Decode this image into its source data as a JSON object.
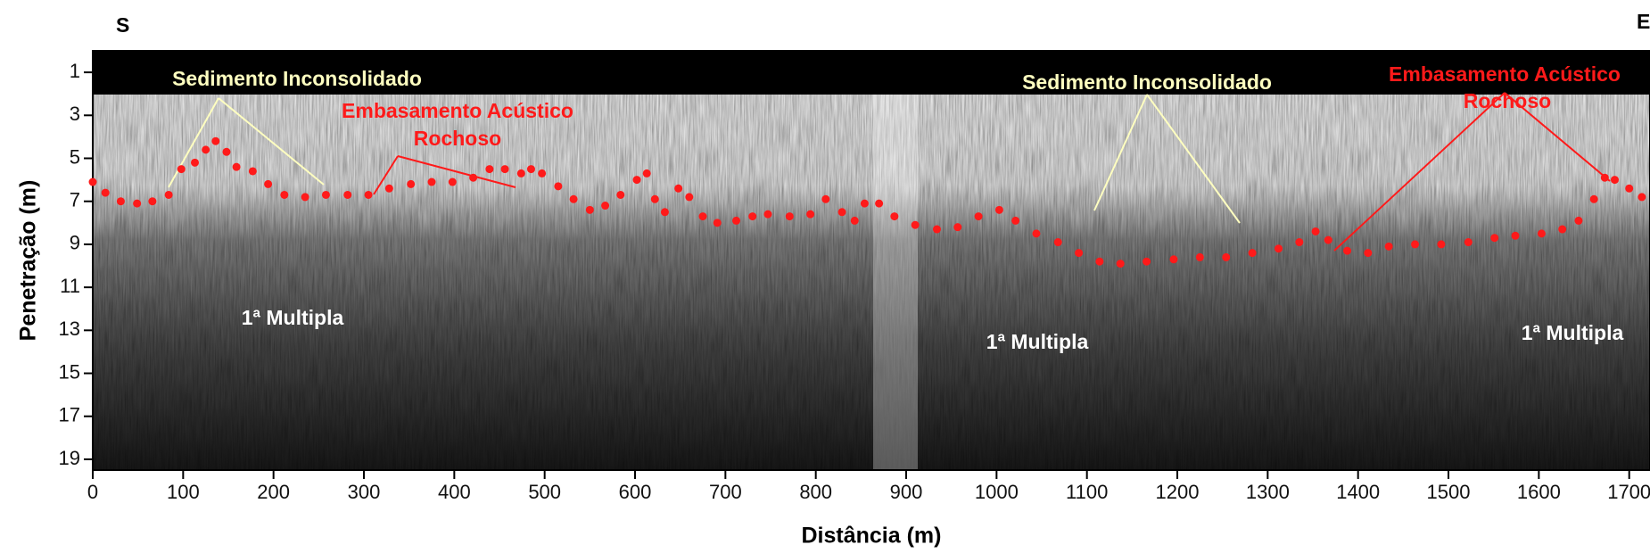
{
  "chart_data": {
    "type": "scatter",
    "direction_labels": [
      "S",
      "E"
    ],
    "x_label": "Distância (m)",
    "y_label": "Penetração (m)",
    "color": "#ff1a1a",
    "x": [
      0,
      14,
      31,
      49,
      66,
      84,
      98,
      113,
      125,
      136,
      148,
      159,
      177,
      194,
      212,
      235,
      258,
      282,
      305,
      328,
      352,
      375,
      398,
      421,
      439,
      456,
      474,
      485,
      497,
      515,
      532,
      550,
      567,
      584,
      602,
      613,
      622,
      633,
      648,
      660,
      675,
      691,
      712,
      730,
      747,
      771,
      794,
      811,
      829,
      843,
      854,
      870,
      887,
      910,
      934,
      957,
      980,
      1003,
      1021,
      1044,
      1068,
      1091,
      1114,
      1137,
      1166,
      1196,
      1225,
      1254,
      1283,
      1312,
      1335,
      1353,
      1367,
      1388,
      1411,
      1434,
      1463,
      1492,
      1522,
      1551,
      1574,
      1603,
      1626,
      1644,
      1661,
      1673,
      1684,
      1700,
      1714
    ],
    "values": [
      6.1,
      6.6,
      7.0,
      7.1,
      7.0,
      6.7,
      5.5,
      5.2,
      4.6,
      4.2,
      4.7,
      5.4,
      5.6,
      6.2,
      6.7,
      6.8,
      6.7,
      6.7,
      6.7,
      6.4,
      6.2,
      6.1,
      6.1,
      5.9,
      5.5,
      5.5,
      5.7,
      5.5,
      5.7,
      6.3,
      6.9,
      7.4,
      7.2,
      6.7,
      6.0,
      5.7,
      6.9,
      7.5,
      6.4,
      6.8,
      7.7,
      8.0,
      7.9,
      7.7,
      7.6,
      7.7,
      7.6,
      6.9,
      7.5,
      7.9,
      7.1,
      7.1,
      7.7,
      8.1,
      8.3,
      8.2,
      7.7,
      7.4,
      7.9,
      8.5,
      8.9,
      9.4,
      9.8,
      9.9,
      9.8,
      9.7,
      9.6,
      9.6,
      9.4,
      9.2,
      8.9,
      8.4,
      8.8,
      9.3,
      9.4,
      9.1,
      9.0,
      9.0,
      8.9,
      8.7,
      8.6,
      8.5,
      8.3,
      7.9,
      6.9,
      5.9,
      6.0,
      6.4,
      6.8
    ],
    "xlim": [
      0,
      1723
    ],
    "ylim": [
      0,
      19.5
    ],
    "y_inverted": true,
    "xticks": [
      0,
      100,
      200,
      300,
      400,
      500,
      600,
      700,
      800,
      900,
      1000,
      1100,
      1200,
      1300,
      1400,
      1500,
      1600,
      1700
    ],
    "yticks": [
      1,
      3,
      5,
      7,
      9,
      11,
      13,
      15,
      17,
      19
    ],
    "annotations": [
      "Sedimento Inconsolidado",
      "Embasamento Acústico",
      "Rochoso",
      "Sedimento Inconsolidado",
      "Embasamento Acústico",
      "Rochoso",
      "1ª Multipla",
      "1ª Multipla",
      "1ª Multipla"
    ]
  }
}
